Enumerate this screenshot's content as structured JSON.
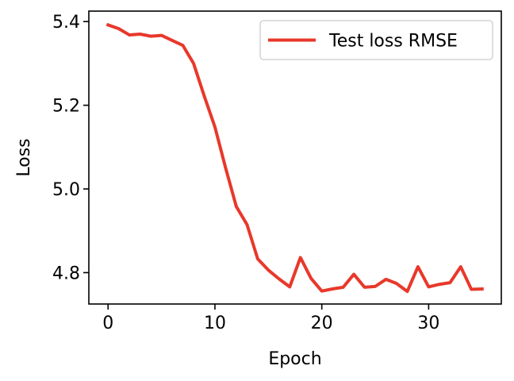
{
  "chart_data": {
    "type": "line",
    "xlabel": "Epoch",
    "ylabel": "Loss",
    "xlim": [
      -1.8,
      36.8
    ],
    "ylim": [
      4.725,
      5.425
    ],
    "x_ticks": [
      0,
      10,
      20,
      30
    ],
    "y_ticks": [
      4.8,
      5.0,
      5.2,
      5.4
    ],
    "y_tick_labels": [
      "4.8",
      "5.0",
      "5.2",
      "5.4"
    ],
    "grid": false,
    "legend": {
      "placement": "top-right"
    },
    "series": [
      {
        "name": "Test loss RMSE",
        "color": "#e8382b",
        "x": [
          0,
          1,
          2,
          3,
          4,
          5,
          6,
          7,
          8,
          9,
          10,
          11,
          12,
          13,
          14,
          15,
          16,
          17,
          18,
          19,
          20,
          21,
          22,
          23,
          24,
          25,
          26,
          27,
          28,
          29,
          30,
          31,
          32,
          33,
          34,
          35
        ],
        "y": [
          5.392,
          5.383,
          5.368,
          5.37,
          5.365,
          5.367,
          5.355,
          5.343,
          5.3,
          5.222,
          5.148,
          5.05,
          4.958,
          4.915,
          4.833,
          4.806,
          4.785,
          4.766,
          4.836,
          4.786,
          4.756,
          4.761,
          4.765,
          4.796,
          4.765,
          4.767,
          4.784,
          4.774,
          4.755,
          4.814,
          4.766,
          4.772,
          4.776,
          4.814,
          4.76,
          4.761
        ]
      }
    ]
  }
}
